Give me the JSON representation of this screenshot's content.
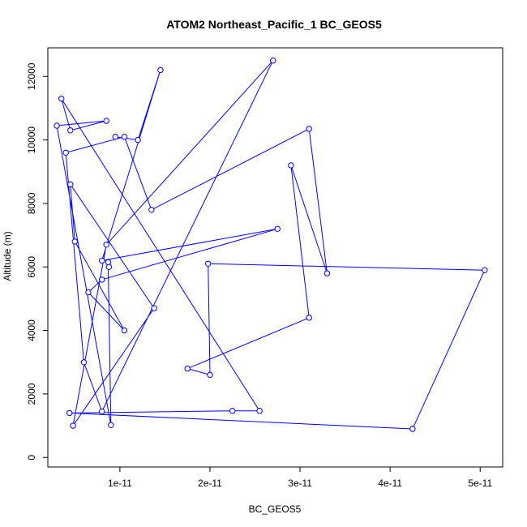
{
  "chart_data": {
    "type": "line",
    "title": "ATOM2 Northeast_Pacific_1 BC_GEOS5",
    "xlabel": "BC_GEOS5",
    "ylabel": "Altitude (m)",
    "xlim": [
      2e-12,
      5.25e-11
    ],
    "ylim": [
      -300,
      12900
    ],
    "x_ticks": [
      1e-11,
      2e-11,
      3e-11,
      4e-11,
      5e-11
    ],
    "x_tick_labels": [
      "1e-11",
      "2e-11",
      "3e-11",
      "4e-11",
      "5e-11"
    ],
    "y_ticks": [
      0,
      2000,
      4000,
      6000,
      8000,
      10000,
      12000
    ],
    "y_tick_labels": [
      "0",
      "2000",
      "4000",
      "6000",
      "8000",
      "10000",
      "12000"
    ],
    "markers": "open-circle",
    "colors": {
      "series": "#0000ff",
      "axis": "#000000"
    },
    "series": [
      {
        "x": [
          9.5e-12,
          1.2e-11,
          1.45e-11,
          8e-12,
          2.75e-11,
          8e-12,
          6.5e-12,
          1.05e-11,
          5e-12,
          4.5e-12,
          1.38e-11,
          4.8e-12,
          8.5e-12,
          2.7e-11,
          8e-12,
          6e-12,
          4e-12,
          1.05e-11,
          1.35e-11,
          3.1e-11,
          3.3e-11,
          2.9e-11,
          3.1e-11,
          1.75e-11,
          2e-11,
          1.98e-11,
          5.05e-11,
          4.25e-11,
          4.4e-12,
          2.25e-11,
          2.55e-11,
          3.5e-12,
          4.5e-12,
          8.5e-12,
          3e-12,
          9e-12,
          8.7e-12,
          8.8e-12
        ],
        "y": [
          10100,
          10000,
          12200,
          6200,
          7200,
          5600,
          5200,
          4000,
          6800,
          8600,
          4700,
          1000,
          6700,
          12500,
          1450,
          3000,
          9600,
          10100,
          7800,
          10350,
          5800,
          9200,
          4400,
          2800,
          2600,
          6100,
          5900,
          900,
          1400,
          1470,
          1470,
          11300,
          10300,
          10600,
          10450,
          1020,
          6150,
          6000
        ]
      }
    ]
  }
}
